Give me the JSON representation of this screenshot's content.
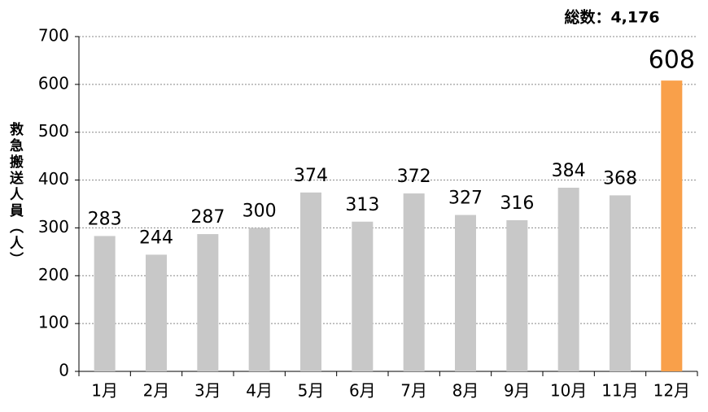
{
  "chart_data": {
    "type": "bar",
    "annotation": "総数：4,176",
    "y_label": "救急搬送人員（人）",
    "categories": [
      "1月",
      "2月",
      "3月",
      "4月",
      "5月",
      "6月",
      "7月",
      "8月",
      "9月",
      "10月",
      "11月",
      "12月"
    ],
    "values": [
      283,
      244,
      287,
      300,
      374,
      313,
      372,
      327,
      316,
      384,
      368,
      608
    ],
    "colors": [
      "#c8c8c8",
      "#c8c8c8",
      "#c8c8c8",
      "#c8c8c8",
      "#c8c8c8",
      "#c8c8c8",
      "#c8c8c8",
      "#c8c8c8",
      "#c8c8c8",
      "#c8c8c8",
      "#c8c8c8",
      "#f9a04a"
    ],
    "ylim": [
      0,
      700
    ],
    "yticks": [
      0,
      100,
      200,
      300,
      400,
      500,
      600,
      700
    ],
    "grid": true
  }
}
